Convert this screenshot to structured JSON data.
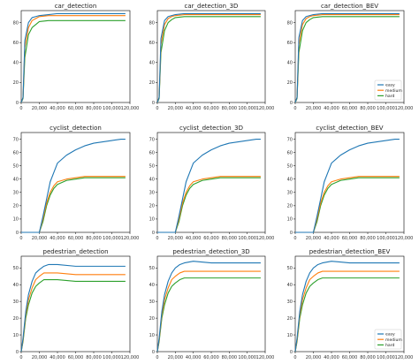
{
  "colors": {
    "easy": "#1f77b4",
    "medium": "#ff7f0e",
    "hard": "#2ca02c"
  },
  "legend_entries": [
    "easy",
    "medium",
    "hard"
  ],
  "chart_data": [
    {
      "type": "line",
      "title": "car_detection",
      "xlim": [
        0,
        120000
      ],
      "ylim": [
        0,
        92
      ],
      "xticks": [
        "0",
        "20,000",
        "40,000",
        "60,000",
        "80,000",
        "100,000",
        "120,000"
      ],
      "yticks": [
        "0",
        "20",
        "40",
        "60",
        "80"
      ],
      "legend": "none",
      "x": [
        0,
        2000,
        4000,
        8000,
        12000,
        16000,
        20000,
        30000,
        40000,
        60000,
        80000,
        100000,
        115000
      ],
      "series": [
        {
          "name": "easy",
          "values": [
            0,
            5,
            62,
            80,
            85,
            86,
            87,
            88,
            89,
            89,
            89,
            89,
            89
          ]
        },
        {
          "name": "medium",
          "values": [
            0,
            5,
            55,
            75,
            82,
            84,
            86,
            87,
            87,
            87,
            87,
            87,
            87
          ]
        },
        {
          "name": "hard",
          "values": [
            0,
            4,
            45,
            68,
            75,
            78,
            81,
            82,
            82,
            82,
            82,
            82,
            82
          ]
        }
      ]
    },
    {
      "type": "line",
      "title": "car_detection_3D",
      "xlim": [
        0,
        120000
      ],
      "ylim": [
        0,
        92
      ],
      "xticks": [
        "0",
        "20,000",
        "40,000",
        "60,000",
        "80,000",
        "100,000",
        "120,000"
      ],
      "yticks": [
        "0",
        "20",
        "40",
        "60",
        "80"
      ],
      "legend": "none",
      "x": [
        0,
        2000,
        4000,
        8000,
        12000,
        16000,
        20000,
        30000,
        40000,
        60000,
        80000,
        100000,
        115000
      ],
      "series": [
        {
          "name": "easy",
          "values": [
            0,
            5,
            64,
            82,
            86,
            87,
            88,
            89,
            89,
            89,
            89,
            89,
            89
          ]
        },
        {
          "name": "medium",
          "values": [
            0,
            5,
            58,
            78,
            84,
            86,
            87,
            88,
            88,
            88,
            88,
            88,
            88
          ]
        },
        {
          "name": "hard",
          "values": [
            0,
            4,
            50,
            72,
            80,
            83,
            85,
            86,
            86,
            86,
            86,
            86,
            86
          ]
        }
      ]
    },
    {
      "type": "line",
      "title": "car_detection_BEV",
      "xlim": [
        0,
        120000
      ],
      "ylim": [
        0,
        92
      ],
      "xticks": [
        "0",
        "20,000",
        "40,000",
        "60,000",
        "80,000",
        "100,000",
        "120,000"
      ],
      "yticks": [
        "0",
        "20",
        "40",
        "60",
        "80"
      ],
      "legend": "bottom-right",
      "x": [
        0,
        2000,
        4000,
        8000,
        12000,
        16000,
        20000,
        30000,
        40000,
        60000,
        80000,
        100000,
        115000
      ],
      "series": [
        {
          "name": "easy",
          "values": [
            0,
            5,
            65,
            82,
            86,
            87,
            88,
            89,
            89,
            89,
            89,
            89,
            89
          ]
        },
        {
          "name": "medium",
          "values": [
            0,
            5,
            58,
            78,
            84,
            86,
            87,
            88,
            88,
            88,
            88,
            88,
            88
          ]
        },
        {
          "name": "hard",
          "values": [
            0,
            4,
            50,
            72,
            80,
            83,
            85,
            86,
            86,
            86,
            86,
            86,
            86
          ]
        }
      ]
    },
    {
      "type": "line",
      "title": "cyclist_detection",
      "xlim": [
        0,
        120000
      ],
      "ylim": [
        0,
        75
      ],
      "xticks": [
        "0",
        "20,000",
        "40,000",
        "60,000",
        "80,000",
        "100,000",
        "120,000"
      ],
      "yticks": [
        "0",
        "10",
        "20",
        "30",
        "40",
        "50",
        "60",
        "70"
      ],
      "legend": "none",
      "x": [
        0,
        10000,
        20000,
        24000,
        28000,
        32000,
        36000,
        40000,
        50000,
        60000,
        70000,
        80000,
        90000,
        100000,
        110000,
        115000
      ],
      "series": [
        {
          "name": "easy",
          "values": [
            0,
            0,
            0,
            12,
            25,
            38,
            45,
            52,
            58,
            62,
            65,
            67,
            68,
            69,
            70,
            70
          ]
        },
        {
          "name": "medium",
          "values": [
            0,
            0,
            0,
            10,
            22,
            30,
            35,
            38,
            40,
            41,
            42,
            42,
            42,
            42,
            42,
            42
          ]
        },
        {
          "name": "hard",
          "values": [
            0,
            0,
            0,
            8,
            20,
            28,
            33,
            36,
            39,
            40,
            41,
            41,
            41,
            41,
            41,
            41
          ]
        }
      ]
    },
    {
      "type": "line",
      "title": "cyclist_detection_3D",
      "xlim": [
        0,
        120000
      ],
      "ylim": [
        0,
        75
      ],
      "xticks": [
        "0",
        "20,000",
        "40,000",
        "60,000",
        "80,000",
        "100,000",
        "120,000"
      ],
      "yticks": [
        "0",
        "10",
        "20",
        "30",
        "40",
        "50",
        "60",
        "70"
      ],
      "legend": "none",
      "x": [
        0,
        10000,
        20000,
        24000,
        28000,
        32000,
        36000,
        40000,
        50000,
        60000,
        70000,
        80000,
        90000,
        100000,
        110000,
        115000
      ],
      "series": [
        {
          "name": "easy",
          "values": [
            0,
            0,
            0,
            12,
            25,
            38,
            45,
            52,
            58,
            62,
            65,
            67,
            68,
            69,
            70,
            70
          ]
        },
        {
          "name": "medium",
          "values": [
            0,
            0,
            0,
            10,
            22,
            30,
            35,
            38,
            40,
            41,
            42,
            42,
            42,
            42,
            42,
            42
          ]
        },
        {
          "name": "hard",
          "values": [
            0,
            0,
            0,
            8,
            20,
            28,
            33,
            36,
            39,
            40,
            41,
            41,
            41,
            41,
            41,
            41
          ]
        }
      ]
    },
    {
      "type": "line",
      "title": "cyclist_detection_BEV",
      "xlim": [
        0,
        120000
      ],
      "ylim": [
        0,
        75
      ],
      "xticks": [
        "0",
        "20,000",
        "40,000",
        "60,000",
        "80,000",
        "100,000",
        "120,000"
      ],
      "yticks": [
        "0",
        "10",
        "20",
        "30",
        "40",
        "50",
        "60",
        "70"
      ],
      "legend": "none",
      "x": [
        0,
        10000,
        20000,
        24000,
        28000,
        32000,
        36000,
        40000,
        50000,
        60000,
        70000,
        80000,
        90000,
        100000,
        110000,
        115000
      ],
      "series": [
        {
          "name": "easy",
          "values": [
            0,
            0,
            0,
            12,
            25,
            38,
            45,
            52,
            58,
            62,
            65,
            67,
            68,
            69,
            70,
            70
          ]
        },
        {
          "name": "medium",
          "values": [
            0,
            0,
            0,
            10,
            22,
            30,
            35,
            38,
            40,
            41,
            42,
            42,
            42,
            42,
            42,
            42
          ]
        },
        {
          "name": "hard",
          "values": [
            0,
            0,
            0,
            8,
            20,
            28,
            33,
            36,
            39,
            40,
            41,
            41,
            41,
            41,
            41,
            41
          ]
        }
      ]
    },
    {
      "type": "line",
      "title": "pedestrian_detection",
      "xlim": [
        0,
        120000
      ],
      "ylim": [
        0,
        57
      ],
      "xticks": [
        "0",
        "20,000",
        "40,000",
        "60,000",
        "80,000",
        "100,000",
        "120,000"
      ],
      "yticks": [
        "0",
        "10",
        "20",
        "30",
        "40",
        "50"
      ],
      "legend": "none",
      "x": [
        0,
        2000,
        5000,
        8000,
        12000,
        16000,
        20000,
        25000,
        30000,
        40000,
        60000,
        80000,
        100000,
        115000
      ],
      "series": [
        {
          "name": "easy",
          "values": [
            0,
            8,
            24,
            34,
            42,
            47,
            49,
            51,
            52,
            52,
            51,
            51,
            51,
            51
          ]
        },
        {
          "name": "medium",
          "values": [
            0,
            7,
            22,
            31,
            38,
            43,
            45,
            47,
            47,
            47,
            46,
            46,
            46,
            46
          ]
        },
        {
          "name": "hard",
          "values": [
            0,
            6,
            20,
            28,
            35,
            39,
            41,
            43,
            43,
            43,
            42,
            42,
            42,
            42
          ]
        }
      ]
    },
    {
      "type": "line",
      "title": "pedestrian_detection_3D",
      "xlim": [
        0,
        120000
      ],
      "ylim": [
        0,
        57
      ],
      "xticks": [
        "0",
        "20,000",
        "40,000",
        "60,000",
        "80,000",
        "100,000",
        "120,000"
      ],
      "yticks": [
        "0",
        "10",
        "20",
        "30",
        "40",
        "50"
      ],
      "legend": "none",
      "x": [
        0,
        2000,
        5000,
        8000,
        12000,
        16000,
        20000,
        25000,
        30000,
        40000,
        60000,
        80000,
        100000,
        115000
      ],
      "series": [
        {
          "name": "easy",
          "values": [
            0,
            8,
            24,
            34,
            42,
            47,
            50,
            52,
            53,
            54,
            53,
            53,
            53,
            53
          ]
        },
        {
          "name": "medium",
          "values": [
            0,
            7,
            22,
            31,
            38,
            43,
            45,
            47,
            48,
            48,
            48,
            48,
            48,
            48
          ]
        },
        {
          "name": "hard",
          "values": [
            0,
            6,
            20,
            28,
            35,
            39,
            41,
            43,
            44,
            44,
            44,
            44,
            44,
            44
          ]
        }
      ]
    },
    {
      "type": "line",
      "title": "pedestrian_detection_BEV",
      "xlim": [
        0,
        120000
      ],
      "ylim": [
        0,
        57
      ],
      "xticks": [
        "0",
        "20,000",
        "40,000",
        "60,000",
        "80,000",
        "100,000",
        "120,000"
      ],
      "yticks": [
        "0",
        "10",
        "20",
        "30",
        "40",
        "50"
      ],
      "legend": "bottom-right",
      "x": [
        0,
        2000,
        5000,
        8000,
        12000,
        16000,
        20000,
        25000,
        30000,
        40000,
        60000,
        80000,
        100000,
        115000
      ],
      "series": [
        {
          "name": "easy",
          "values": [
            0,
            8,
            24,
            34,
            42,
            47,
            50,
            52,
            53,
            54,
            53,
            53,
            53,
            53
          ]
        },
        {
          "name": "medium",
          "values": [
            0,
            7,
            22,
            31,
            38,
            43,
            45,
            47,
            48,
            48,
            48,
            48,
            48,
            48
          ]
        },
        {
          "name": "hard",
          "values": [
            0,
            6,
            20,
            28,
            35,
            39,
            41,
            43,
            44,
            44,
            44,
            44,
            44,
            44
          ]
        }
      ]
    }
  ]
}
